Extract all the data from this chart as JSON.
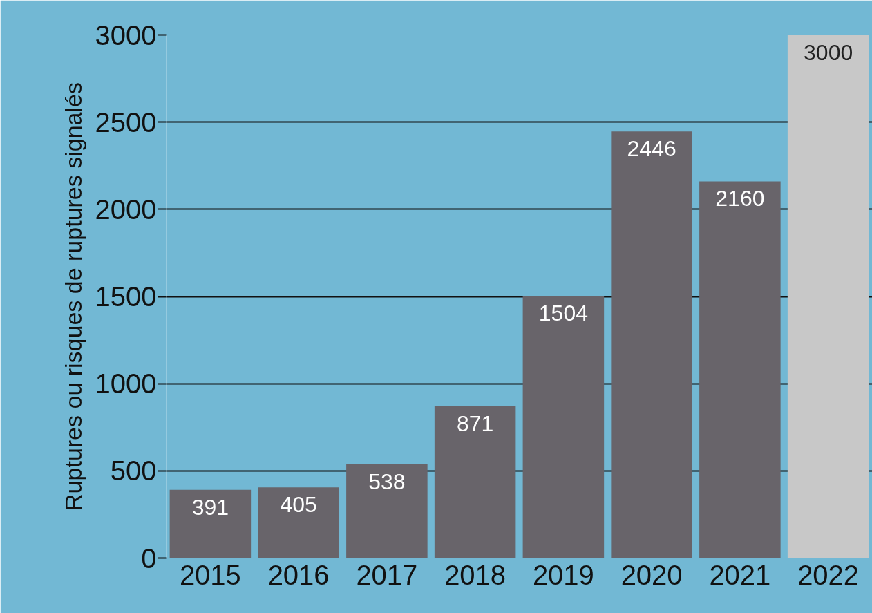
{
  "chart_data": {
    "type": "bar",
    "ylabel": "Ruptures ou risques de ruptures signalés",
    "categories": [
      "2015",
      "2016",
      "2017",
      "2018",
      "2019",
      "2020",
      "2021",
      "2022"
    ],
    "values": [
      391,
      405,
      538,
      871,
      1504,
      2446,
      2160,
      3000
    ],
    "colors": [
      "#68646a",
      "#68646a",
      "#68646a",
      "#68646a",
      "#68646a",
      "#68646a",
      "#68646a",
      "#c8c8c8"
    ],
    "ylim": [
      0,
      3000
    ],
    "yticks": [
      0,
      500,
      1000,
      1500,
      2000,
      2500,
      3000
    ],
    "grid": "y",
    "data_labels": true
  }
}
